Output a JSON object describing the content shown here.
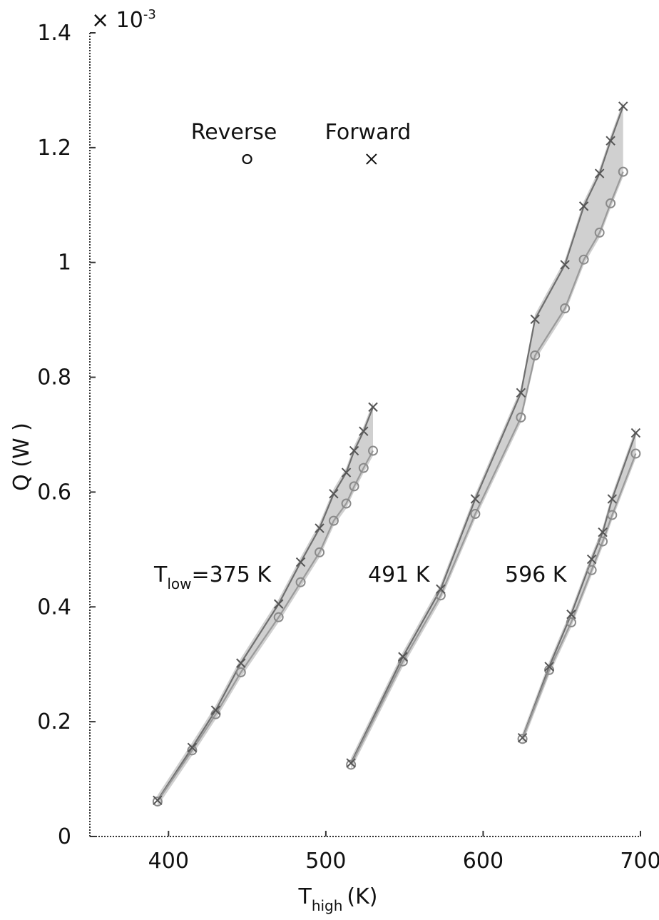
{
  "chart_data": {
    "type": "scatter",
    "xlabel": "T",
    "xlabel_sub": "high",
    "xlabel_unit": "(K)",
    "ylabel": "Q (W )",
    "y_multiplier": "× 10",
    "y_multiplier_exp": "-3",
    "xlim": [
      350,
      700
    ],
    "ylim": [
      0,
      1.4
    ],
    "x_ticks": [
      400,
      500,
      600,
      700
    ],
    "x_tick_labels": [
      "400",
      "500",
      "600",
      "700"
    ],
    "y_ticks": [
      0,
      0.2,
      0.4,
      0.6,
      0.8,
      1.0,
      1.2,
      1.4
    ],
    "y_tick_labels": [
      "0",
      "0.2",
      "0.4",
      "0.6",
      "0.8",
      "1",
      "1.2",
      "1.4"
    ],
    "grid": false,
    "legend": {
      "placement": "top-left",
      "entries": [
        {
          "label": "Reverse",
          "marker": "circle",
          "x": 450,
          "y": 1.18
        },
        {
          "label": "Forward",
          "marker": "x",
          "x": 529,
          "y": 1.18
        }
      ]
    },
    "annotations": [
      {
        "prefix": "T",
        "sub": "low",
        "suffix": "=375 K",
        "x": 392,
        "y": 0.455
      },
      {
        "prefix": "491 K",
        "sub": "",
        "suffix": "",
        "x": 545,
        "y": 0.455
      },
      {
        "prefix": "596 K",
        "sub": "",
        "suffix": "",
        "x": 630,
        "y": 0.455
      }
    ],
    "groups": [
      {
        "forward": {
          "x": [
            393,
            415,
            430,
            446,
            470,
            484,
            496,
            505,
            513,
            518,
            524,
            530
          ],
          "y": [
            0.063,
            0.155,
            0.22,
            0.302,
            0.405,
            0.478,
            0.537,
            0.597,
            0.634,
            0.672,
            0.706,
            0.748
          ]
        },
        "reverse": {
          "x": [
            393,
            415,
            430,
            446,
            470,
            484,
            496,
            505,
            513,
            518,
            524,
            530
          ],
          "y": [
            0.061,
            0.15,
            0.213,
            0.286,
            0.382,
            0.443,
            0.495,
            0.55,
            0.58,
            0.61,
            0.642,
            0.672
          ]
        }
      },
      {
        "forward": {
          "x": [
            516,
            549,
            573,
            595,
            624,
            633,
            652,
            664,
            674,
            681,
            689
          ],
          "y": [
            0.128,
            0.313,
            0.431,
            0.588,
            0.773,
            0.901,
            0.996,
            1.098,
            1.155,
            1.212,
            1.272
          ]
        },
        "reverse": {
          "x": [
            516,
            549,
            573,
            595,
            624,
            633,
            652,
            664,
            674,
            681,
            689
          ],
          "y": [
            0.125,
            0.305,
            0.42,
            0.562,
            0.73,
            0.838,
            0.92,
            1.005,
            1.052,
            1.103,
            1.158
          ]
        }
      },
      {
        "forward": {
          "x": [
            625,
            642,
            656,
            669,
            676,
            682,
            697
          ],
          "y": [
            0.172,
            0.296,
            0.387,
            0.483,
            0.53,
            0.588,
            0.703
          ]
        },
        "reverse": {
          "x": [
            625,
            642,
            656,
            669,
            676,
            682,
            697
          ],
          "y": [
            0.17,
            0.29,
            0.373,
            0.464,
            0.514,
            0.56,
            0.667
          ]
        }
      }
    ]
  }
}
